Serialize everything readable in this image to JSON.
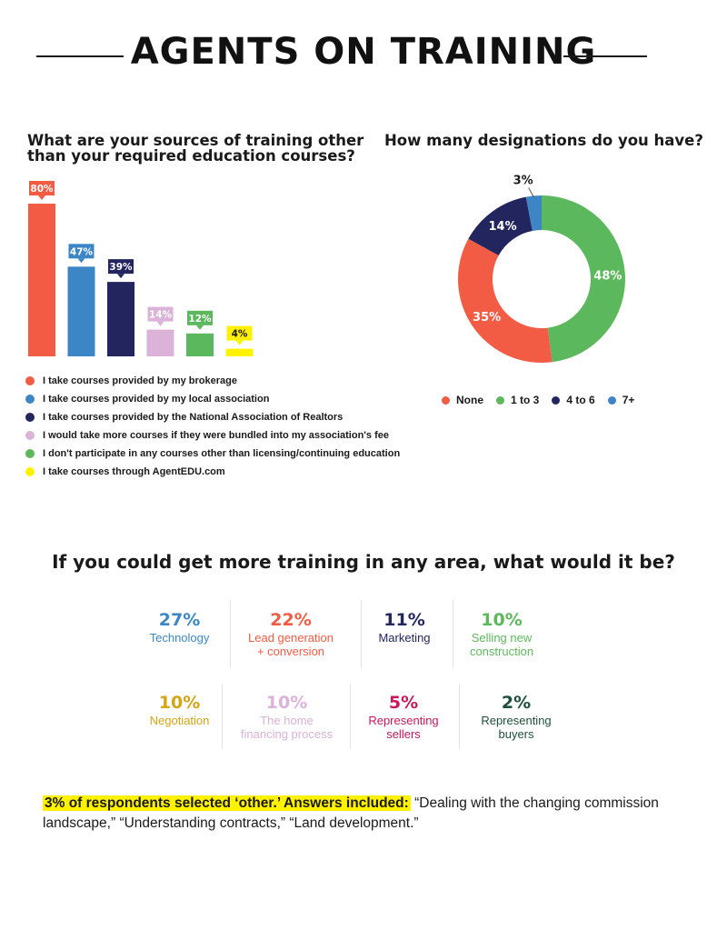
{
  "title": "AGENTS ON TRAINING",
  "colors": {
    "red": "#f25c45",
    "blue": "#3d86c6",
    "navy": "#23255e",
    "pink": "#dbb3d8",
    "green": "#5cb85c",
    "yellow": "#fff200",
    "gold": "#d4a514",
    "crimson": "#c8185a",
    "darkgreen": "#1f4f3a"
  },
  "chart_data": [
    {
      "type": "bar",
      "title": "What are your sources of training other than your required education courses?",
      "categories": [
        "I take courses provided by my brokerage",
        "I take courses provided by my local association",
        "I take courses provided by the National Association of Realtors",
        "I would take more courses if they were bundled into my association's fee",
        "I don't participate in any courses other than licensing/continuing education",
        "I take courses through AgentEDU.com"
      ],
      "values": [
        80,
        47,
        39,
        14,
        12,
        4
      ],
      "data_labels": [
        "80%",
        "47%",
        "39%",
        "14%",
        "12%",
        "4%"
      ],
      "bar_colors": [
        "#f25c45",
        "#3d86c6",
        "#23255e",
        "#dbb3d8",
        "#5cb85c",
        "#fff200"
      ],
      "label_text_colors": [
        "#ffffff",
        "#ffffff",
        "#ffffff",
        "#ffffff",
        "#ffffff",
        "#1a1a1a"
      ],
      "ylim": [
        0,
        80
      ],
      "grid": false,
      "legend_position": "bottom"
    },
    {
      "type": "pie",
      "title": "How many designations do you have?",
      "categories": [
        "None",
        "1 to 3",
        "4 to 6",
        "7+"
      ],
      "values": [
        35,
        48,
        14,
        3
      ],
      "data_labels": [
        "35%",
        "48%",
        "14%",
        "3%"
      ],
      "slice_colors": [
        "#f25c45",
        "#5cb85c",
        "#23255e",
        "#3d86c6"
      ],
      "donut": true,
      "legend_position": "bottom"
    }
  ],
  "areas_title": "If you could get more training in any area, what would it be?",
  "areas": [
    {
      "percent": "27%",
      "label": "Technology",
      "color": "#3d86c6"
    },
    {
      "percent": "22%",
      "label": "Lead generation\n+ conversion",
      "color": "#f25c45"
    },
    {
      "percent": "11%",
      "label": "Marketing",
      "color": "#23255e"
    },
    {
      "percent": "10%",
      "label": "Selling new\nconstruction",
      "color": "#5cb85c"
    },
    {
      "percent": "10%",
      "label": "Negotiation",
      "color": "#d4a514"
    },
    {
      "percent": "10%",
      "label": "The home\nfinancing process",
      "color": "#dbb3d8"
    },
    {
      "percent": "5%",
      "label": "Representing\nsellers",
      "color": "#c8185a"
    },
    {
      "percent": "2%",
      "label": "Representing\nbuyers",
      "color": "#1f4f3a"
    }
  ],
  "footnote": {
    "highlight": "3% of respondents selected ‘other.’ Answers included:",
    "text": " “Dealing with the changing commission landscape,” “Understanding contracts,” “Land development.”"
  }
}
